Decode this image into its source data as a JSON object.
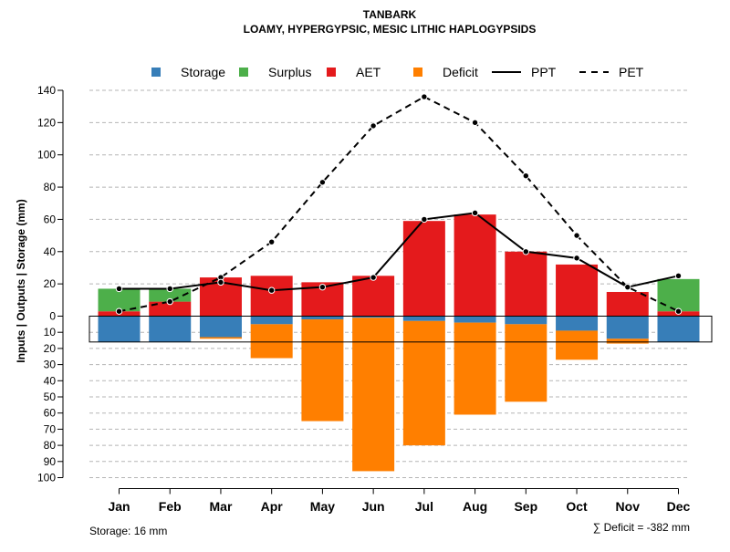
{
  "chart_data": {
    "type": "bar",
    "title": "TANBARK",
    "subtitle": "LOAMY, HYPERGYPSIC, MESIC LITHIC HAPLOGYPSIDS",
    "ylabel": "Inputs | Outputs | Storage    (mm)",
    "categories": [
      "Jan",
      "Feb",
      "Mar",
      "Apr",
      "May",
      "Jun",
      "Jul",
      "Aug",
      "Sep",
      "Oct",
      "Nov",
      "Dec"
    ],
    "upper_ticks": [
      "0",
      "20",
      "40",
      "60",
      "80",
      "100",
      "120",
      "140"
    ],
    "lower_ticks": [
      "10",
      "20",
      "30",
      "40",
      "50",
      "60",
      "70",
      "80",
      "90",
      "100"
    ],
    "ylim_upper": [
      0,
      140
    ],
    "ylim_lower": [
      0,
      100
    ],
    "legend": [
      {
        "label": "Storage",
        "kind": "box",
        "color": "#377eb8"
      },
      {
        "label": "Surplus",
        "kind": "box",
        "color": "#4daf4a"
      },
      {
        "label": "AET",
        "kind": "box",
        "color": "#e41a1c"
      },
      {
        "label": "Deficit",
        "kind": "box",
        "color": "#ff7f00"
      },
      {
        "label": "PPT",
        "kind": "solid",
        "color": "#000000"
      },
      {
        "label": "PET",
        "kind": "dashed",
        "color": "#000000"
      }
    ],
    "series": [
      {
        "name": "AET",
        "color": "#e41a1c",
        "values": [
          3,
          9,
          24,
          25,
          21,
          25,
          59,
          63,
          40,
          32,
          15,
          3
        ]
      },
      {
        "name": "Surplus",
        "color": "#4daf4a",
        "values": [
          14,
          8,
          0,
          0,
          0,
          0,
          0,
          0,
          0,
          0,
          0,
          20
        ]
      },
      {
        "name": "Storage",
        "color": "#377eb8",
        "values": [
          16,
          16,
          13,
          5,
          2,
          1,
          3,
          4,
          5,
          9,
          14,
          16
        ]
      },
      {
        "name": "Deficit",
        "color": "#ff7f00",
        "values": [
          0,
          0,
          1,
          21,
          63,
          95,
          77,
          57,
          48,
          18,
          3,
          0
        ]
      },
      {
        "name": "PPT",
        "color": "#000000",
        "values": [
          17,
          17,
          21,
          16,
          18,
          24,
          60,
          64,
          40,
          36,
          18,
          25
        ]
      },
      {
        "name": "PET",
        "color": "#000000",
        "values": [
          3,
          9,
          24,
          46,
          83,
          118,
          136,
          120,
          87,
          50,
          18,
          3
        ]
      }
    ],
    "storage_capacity": 16,
    "footer_left": "Storage: 16 mm",
    "footer_right": "∑ Deficit = -382 mm"
  }
}
